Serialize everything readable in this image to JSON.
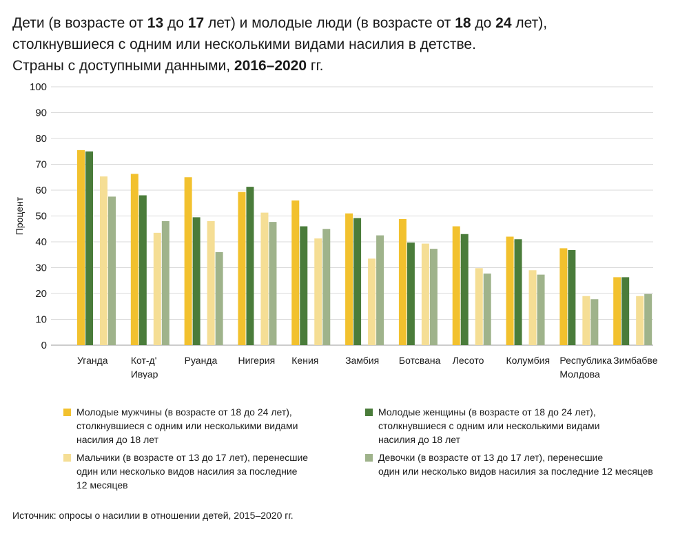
{
  "title": {
    "lines": [
      [
        {
          "t": "Дети (в возрасте от ",
          "b": false
        },
        {
          "t": "13",
          "b": true
        },
        {
          "t": " до ",
          "b": false
        },
        {
          "t": "17",
          "b": true
        },
        {
          "t": " лет) и молодые люди (в возрасте от ",
          "b": false
        },
        {
          "t": "18",
          "b": true
        },
        {
          "t": " до ",
          "b": false
        },
        {
          "t": "24",
          "b": true
        },
        {
          "t": " лет),",
          "b": false
        }
      ],
      [
        {
          "t": "столкнувшиеся с одним или несколькими видами насилия в детстве.",
          "b": false
        }
      ],
      [
        {
          "t": "Страны с доступными данными, ",
          "b": false
        },
        {
          "t": "2016–2020",
          "b": true
        },
        {
          "t": " гг.",
          "b": false
        }
      ]
    ]
  },
  "chart_data": {
    "type": "bar",
    "ylabel": "Процент",
    "ylim": [
      0,
      100
    ],
    "yticks": [
      0,
      10,
      20,
      30,
      40,
      50,
      60,
      70,
      80,
      90,
      100
    ],
    "grid": true,
    "categories": [
      [
        "Уганда"
      ],
      [
        "Кот-д'",
        "Ивуар"
      ],
      [
        "Руанда"
      ],
      [
        "Нигерия"
      ],
      [
        "Кения"
      ],
      [
        "Замбия"
      ],
      [
        "Ботсвана"
      ],
      [
        "Лесото"
      ],
      [
        "Колумбия"
      ],
      [
        "Республика",
        "Молдова"
      ],
      [
        "Зимбабве"
      ]
    ],
    "series": [
      {
        "name": "Молодые мужчины (в возрасте от 18 до 24 лет), столкнувшиеся с одним или несколькими видами насилия до 18 лет",
        "color": "#f2c12e",
        "values": [
          75.5,
          66.3,
          65.0,
          59.3,
          56.0,
          51.0,
          48.8,
          46.0,
          42.0,
          37.5,
          26.3
        ]
      },
      {
        "name": "Молодые женщины (в возрасте от 18 до 24 лет), столкнувшиеся с одним или несколькими видами насилия до 18 лет",
        "color": "#4a7c3a",
        "values": [
          75.0,
          58.0,
          49.5,
          61.3,
          46.0,
          49.2,
          39.7,
          43.0,
          41.0,
          36.8,
          26.3
        ]
      },
      {
        "name": "Мальчики (в возрасте от 13 до 17 лет), перенесшие один или несколько видов насилия за последние 12 месяцев",
        "color": "#f5de95",
        "values": [
          65.3,
          43.5,
          48.0,
          51.3,
          41.3,
          33.5,
          39.3,
          29.8,
          29.0,
          19.0,
          19.0
        ]
      },
      {
        "name": "Девочки (в возрасте от 13 до 17 лет), перенесшие один или несколько видов насилия за последние 12 месяцев",
        "color": "#9fb38b",
        "values": [
          57.5,
          48.0,
          36.0,
          47.7,
          45.0,
          42.5,
          37.3,
          27.7,
          27.3,
          17.8,
          19.8
        ]
      }
    ]
  },
  "legend": {
    "items": [
      {
        "lines": [
          "Молодые мужчины (в возрасте от 18 до 24 лет),",
          "столкнувшиеся с одним или несколькими видами",
          "насилия до 18 лет"
        ],
        "color": "#f2c12e"
      },
      {
        "lines": [
          "Молодые женщины (в возрасте от 18 до 24 лет),",
          "столкнувшиеся с одним или несколькими видами",
          "насилия до 18 лет"
        ],
        "color": "#4a7c3a"
      },
      {
        "lines": [
          "Мальчики (в возрасте от 13 до 17 лет), перенесшие",
          "один или несколько видов насилия за последние",
          "12 месяцев"
        ],
        "color": "#f5de95"
      },
      {
        "lines": [
          "Девочки (в возрасте от 13 до 17 лет), перенесшие",
          "один или несколько видов насилия за последние 12 месяцев"
        ],
        "color": "#9fb38b"
      }
    ]
  },
  "source": "Источник: опросы о насилии в отношении детей, 2015–2020 гг."
}
